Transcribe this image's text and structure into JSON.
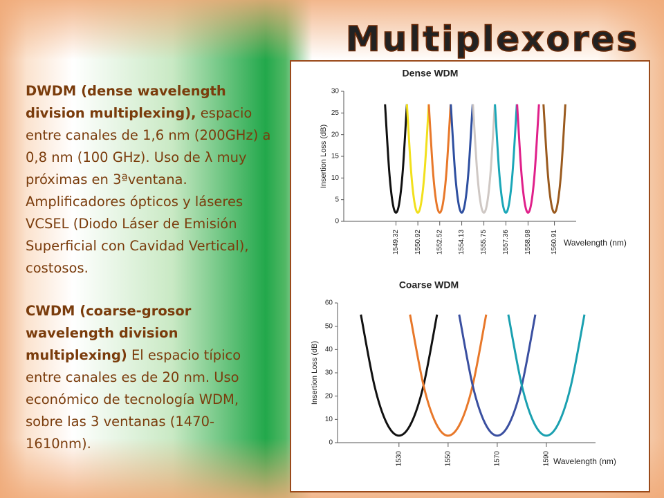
{
  "title": "Multiplexores",
  "paragraphs": [
    {
      "bold": "DWDM (dense wavelength division multiplexing),",
      "text": "espacio entre canales de 1,6 nm (200GHz) a 0,8 nm (100 GHz). Uso de λ muy próximas en 3ªventana. Amplificadores ópticos y láseres VCSEL (Diodo Láser de Emisión Superficial con Cavidad Vertical), costosos."
    },
    {
      "bold": "CWDM (coarse-grosor wavelength division multiplexing)",
      "text": "El espacio típico entre canales es de 20 nm. Uso económico de tecnología WDM, sobre las 3 ventanas (1470-1610nm)."
    }
  ],
  "chart_data": [
    {
      "type": "line",
      "title": "Dense WDM",
      "x_label": "Wavelength (nm)",
      "y_label": "Insertion Loss (dB)",
      "xlim": [
        1545.5,
        1562.5
      ],
      "ylim": [
        0,
        30
      ],
      "xticks": [
        1549.32,
        1550.92,
        1552.52,
        1554.13,
        1555.75,
        1557.36,
        1558.98,
        1560.91
      ],
      "yticks": [
        0,
        5,
        10,
        15,
        20,
        25,
        30
      ],
      "series": [
        {
          "color": "#111111",
          "x": [
            1548.52,
            1548.82,
            1549.07,
            1549.32,
            1549.57,
            1549.82,
            1550.12
          ],
          "values": [
            27,
            11.8,
            4.4,
            2,
            4.4,
            11.8,
            27
          ]
        },
        {
          "color": "#f2e01c",
          "x": [
            1550.12,
            1550.42,
            1550.67,
            1550.92,
            1551.17,
            1551.42,
            1551.72
          ],
          "values": [
            27,
            11.8,
            4.4,
            2,
            4.4,
            11.8,
            27
          ]
        },
        {
          "color": "#e8782a",
          "x": [
            1551.72,
            1552.02,
            1552.27,
            1552.52,
            1552.77,
            1553.02,
            1553.32
          ],
          "values": [
            27,
            11.8,
            4.4,
            2,
            4.4,
            11.8,
            27
          ]
        },
        {
          "color": "#2e4fa0",
          "x": [
            1553.33,
            1553.63,
            1553.88,
            1554.13,
            1554.38,
            1554.63,
            1554.93
          ],
          "values": [
            27,
            11.8,
            4.4,
            2,
            4.4,
            11.8,
            27
          ]
        },
        {
          "color": "#cfc8c4",
          "x": [
            1554.95,
            1555.25,
            1555.5,
            1555.75,
            1556,
            1556.25,
            1556.55
          ],
          "values": [
            27,
            11.8,
            4.4,
            2,
            4.4,
            11.8,
            27
          ]
        },
        {
          "color": "#1aa7b8",
          "x": [
            1556.56,
            1556.86,
            1557.11,
            1557.36,
            1557.61,
            1557.86,
            1558.16
          ],
          "values": [
            27,
            11.8,
            4.4,
            2,
            4.4,
            11.8,
            27
          ]
        },
        {
          "color": "#e0208a",
          "x": [
            1558.18,
            1558.48,
            1558.73,
            1558.98,
            1559.23,
            1559.48,
            1559.78
          ],
          "values": [
            27,
            11.8,
            4.4,
            2,
            4.4,
            11.8,
            27
          ]
        },
        {
          "color": "#9a5a1e",
          "x": [
            1560.11,
            1560.41,
            1560.66,
            1560.91,
            1561.16,
            1561.41,
            1561.71
          ],
          "values": [
            27,
            11.8,
            4.4,
            2,
            4.4,
            11.8,
            27
          ]
        }
      ]
    },
    {
      "type": "line",
      "title": "Coarse WDM",
      "x_label": "Wavelength (nm)",
      "y_label": "Insertion Loss (dB)",
      "xlim": [
        1505,
        1610
      ],
      "ylim": [
        0,
        60
      ],
      "xticks": [
        1530,
        1550,
        1570,
        1590
      ],
      "yticks": [
        0,
        10,
        20,
        30,
        40,
        50,
        60
      ],
      "series": [
        {
          "color": "#111111",
          "x": [
            1514.5,
            1520,
            1525,
            1530,
            1535,
            1540,
            1545.5
          ],
          "values": [
            55,
            24.6,
            8.4,
            3,
            8.4,
            24.6,
            55
          ]
        },
        {
          "color": "#e8782a",
          "x": [
            1534.5,
            1540,
            1545,
            1550,
            1555,
            1560,
            1565.5
          ],
          "values": [
            55,
            24.6,
            8.4,
            3,
            8.4,
            24.6,
            55
          ]
        },
        {
          "color": "#3a4fa0",
          "x": [
            1554.5,
            1560,
            1565,
            1570,
            1575,
            1580,
            1585.5
          ],
          "values": [
            55,
            24.6,
            8.4,
            3,
            8.4,
            24.6,
            55
          ]
        },
        {
          "color": "#1aa0b0",
          "x": [
            1574.5,
            1580,
            1585,
            1590,
            1595,
            1600,
            1605.5
          ],
          "values": [
            55,
            24.6,
            8.4,
            3,
            8.4,
            24.6,
            55
          ]
        }
      ]
    }
  ]
}
